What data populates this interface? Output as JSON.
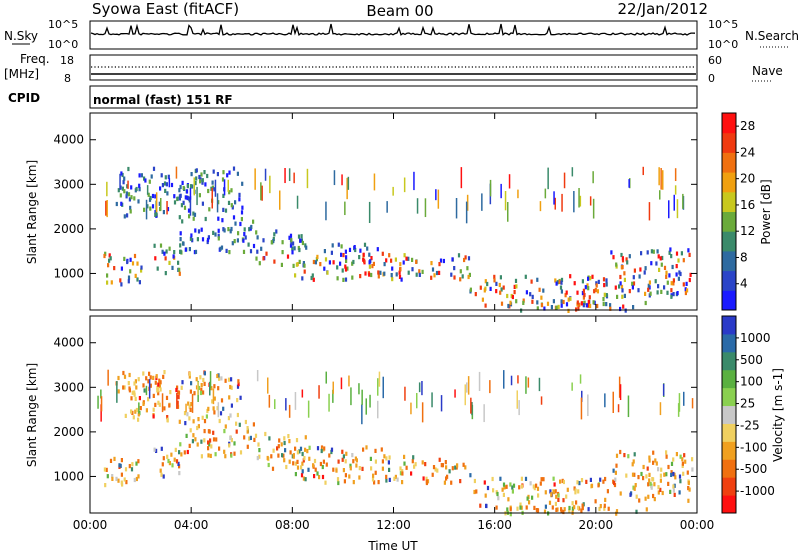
{
  "header": {
    "station": "Syowa East (fitACF)",
    "beam": "Beam 00",
    "date": "22/Jan/2012"
  },
  "strip": {
    "nsky_label": "N.Sky",
    "nsky_ticks": [
      "10^5",
      "10^0"
    ],
    "nsearch_label": "N.Search",
    "nsearch_ticks": [
      "10^5",
      "10^0"
    ],
    "freq_label": "Freq.",
    "freq_unit": "[MHz]",
    "freq_ticks": [
      "18",
      "8"
    ],
    "nave_label": "Nave",
    "nave_ticks": [
      "60",
      "0"
    ],
    "cpid_label": "CPID",
    "cpid_text": "normal (fast) 151 RF"
  },
  "chart_data": [
    {
      "type": "heatmap",
      "name": "power",
      "xlabel": "",
      "ylabel": "Slant Range [km]",
      "x_ticks": [
        "00:00",
        "04:00",
        "08:00",
        "12:00",
        "16:00",
        "20:00",
        "00:00"
      ],
      "y_ticks": [
        1000,
        2000,
        3000,
        4000
      ],
      "xlim": [
        0,
        24
      ],
      "ylim": [
        180,
        4600
      ],
      "colorbar": {
        "label": "Power [dB]",
        "ticks": [
          "4",
          "8",
          "12",
          "16",
          "20",
          "24",
          "28"
        ],
        "range": [
          0,
          30
        ],
        "colors": [
          "#1a1aff",
          "#2a44c8",
          "#2e6aa0",
          "#3a8a6a",
          "#6aaa3a",
          "#c8c81e",
          "#f0a010",
          "#f07010",
          "#f03a10",
          "#ff1010"
        ]
      }
    },
    {
      "type": "heatmap",
      "name": "velocity",
      "xlabel": "Time UT",
      "ylabel": "Slant Range [km]",
      "x_ticks": [
        "00:00",
        "04:00",
        "08:00",
        "12:00",
        "16:00",
        "20:00",
        "00:00"
      ],
      "y_ticks": [
        1000,
        2000,
        3000,
        4000
      ],
      "xlim": [
        0,
        24
      ],
      "ylim": [
        180,
        4600
      ],
      "colorbar": {
        "label": "Velocity [m s-1]",
        "ticks": [
          "1000",
          "500",
          "100",
          "25",
          "-25",
          "-100",
          "-500",
          "-1000"
        ],
        "colors": [
          "#2a3ac8",
          "#2a6aa8",
          "#3a8a6a",
          "#5ab040",
          "#8ad050",
          "#c8c8c8",
          "#f0d060",
          "#f0a020",
          "#f07010",
          "#f04010",
          "#ff1010"
        ]
      }
    }
  ]
}
